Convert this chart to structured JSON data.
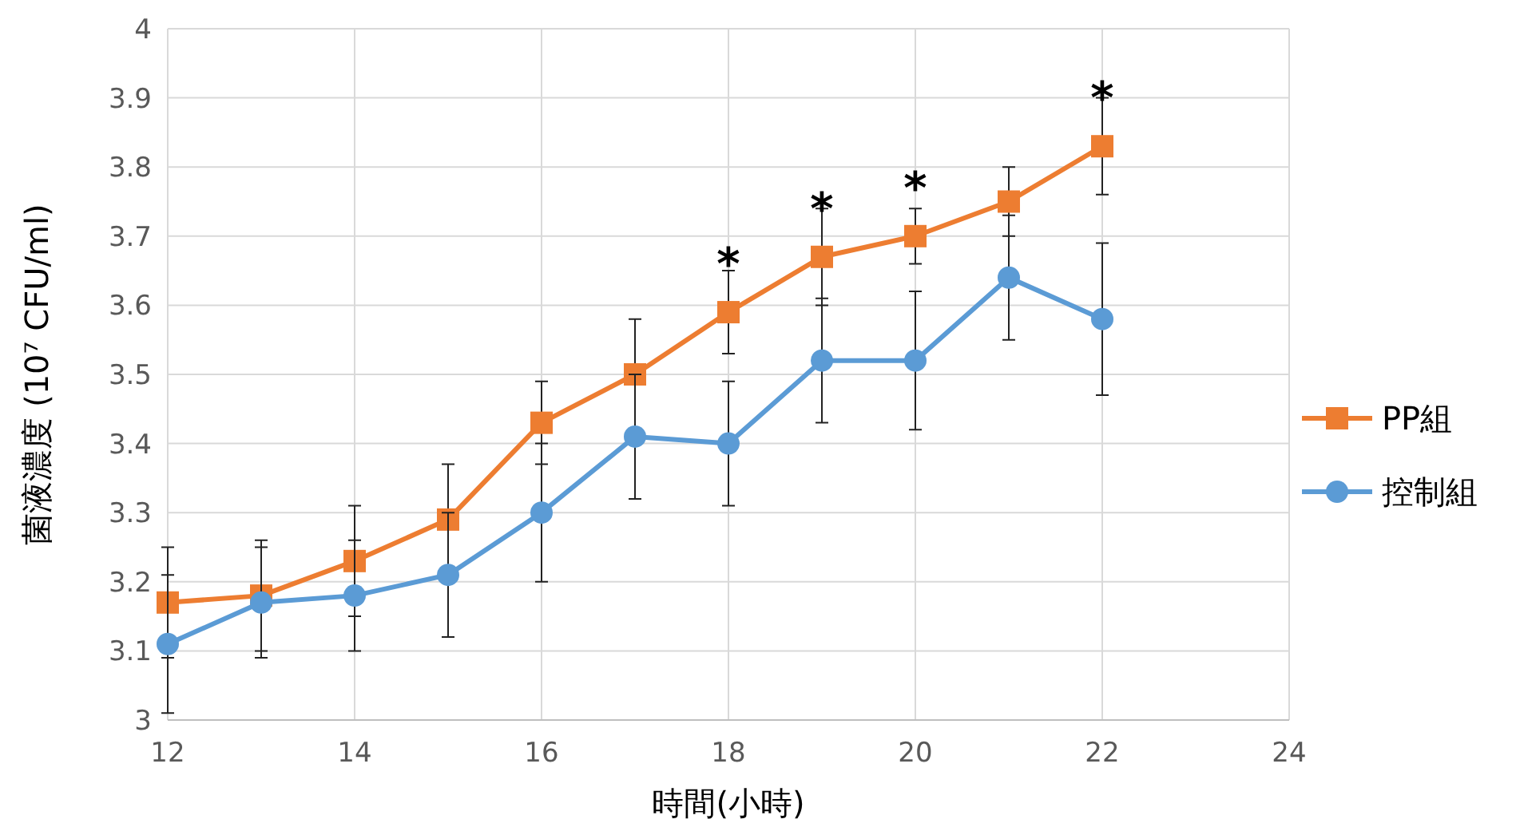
{
  "chart_data": {
    "type": "line",
    "xlabel": "時間(小時)",
    "ylabel": "菌液濃度 (10⁷ CFU/ml)",
    "x": [
      12,
      13,
      14,
      15,
      16,
      17,
      18,
      19,
      20,
      21,
      22
    ],
    "series": [
      {
        "name": "PP組",
        "color": "#ed7d31",
        "marker": "square",
        "values": [
          3.17,
          3.18,
          3.23,
          3.29,
          3.43,
          3.5,
          3.59,
          3.67,
          3.7,
          3.75,
          3.83
        ],
        "errors": [
          0.08,
          0.08,
          0.08,
          0.08,
          0.06,
          0.08,
          0.06,
          0.07,
          0.04,
          0.05,
          0.07
        ]
      },
      {
        "name": "控制組",
        "color": "#5b9bd5",
        "marker": "circle",
        "values": [
          3.11,
          3.17,
          3.18,
          3.21,
          3.3,
          3.41,
          3.4,
          3.52,
          3.52,
          3.64,
          3.58
        ],
        "errors": [
          0.1,
          0.08,
          0.08,
          0.09,
          0.1,
          0.09,
          0.09,
          0.09,
          0.1,
          0.09,
          0.11
        ]
      }
    ],
    "xlim": [
      12,
      24
    ],
    "xticks": [
      12,
      14,
      16,
      18,
      20,
      22,
      24
    ],
    "ylim": [
      3,
      4
    ],
    "yticks": [
      3,
      3.1,
      3.2,
      3.3,
      3.4,
      3.5,
      3.6,
      3.7,
      3.8,
      3.9,
      4
    ],
    "grid": true,
    "legend": "right",
    "annotations": [
      {
        "text": "*",
        "x": 18,
        "y": 3.59
      },
      {
        "text": "*",
        "x": 19,
        "y": 3.67
      },
      {
        "text": "*",
        "x": 20,
        "y": 3.7
      },
      {
        "text": "*",
        "x": 22,
        "y": 3.83
      }
    ]
  }
}
